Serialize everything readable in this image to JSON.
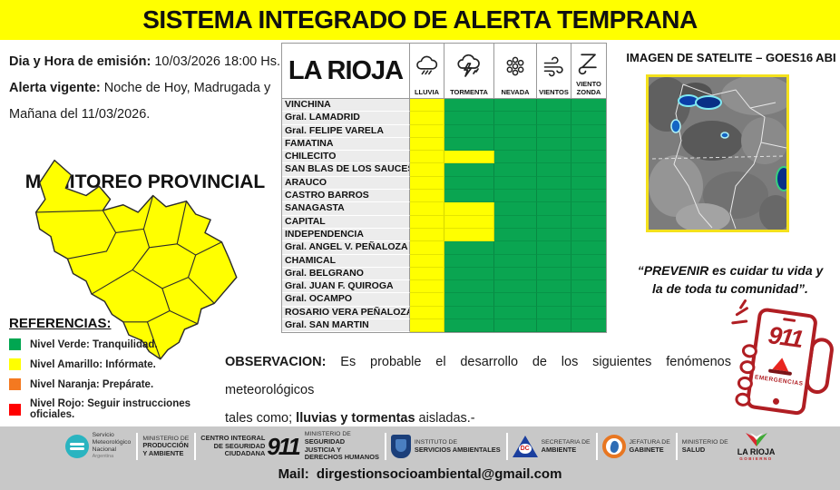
{
  "header": {
    "title": "SISTEMA INTEGRADO DE ALERTA TEMPRANA"
  },
  "info": {
    "emission_label": "Dia y Hora de emisión:",
    "emission_value": "10/03/2026  18:00 Hs.",
    "alert_label": "Alerta vigente:",
    "alert_value_line1": "Noche de Hoy, Madrugada y",
    "alert_value_line2": "Mañana del 11/03/2026.",
    "monitoring_title": "MONITOREO PROVINCIAL"
  },
  "references": {
    "title": "REFERENCIAS",
    "items": [
      {
        "color": "#00a651",
        "label": "Nivel Verde: Tranquilidad."
      },
      {
        "color": "#ffff00",
        "label": "Nivel Amarillo: Infórmate."
      },
      {
        "color": "#f47920",
        "label": "Nivel Naranja: Prepárate."
      },
      {
        "color": "#ff0000",
        "label": "Nivel Rojo: Seguir instrucciones oficiales."
      }
    ]
  },
  "table": {
    "title": "LA RIOJA",
    "columns": [
      {
        "id": "lluvia",
        "label": "LLUVIA",
        "icon": "rain-cloud-icon"
      },
      {
        "id": "tormenta",
        "label": "TORMENTA",
        "icon": "storm-cloud-icon"
      },
      {
        "id": "nevada",
        "label": "NEVADA",
        "icon": "snowfall-icon"
      },
      {
        "id": "vientos",
        "label": "VIENTOS",
        "icon": "wind-icon"
      },
      {
        "id": "zonda",
        "label": "VIENTO\nZONDA",
        "icon": "zonda-icon"
      }
    ],
    "levels": {
      "yellow": "#ffff00",
      "green": "#0aa551"
    },
    "rows": [
      {
        "name": "VINCHINA",
        "cells": [
          "yellow",
          "green",
          "green",
          "green",
          "green"
        ]
      },
      {
        "name": "Gral. LAMADRID",
        "cells": [
          "yellow",
          "green",
          "green",
          "green",
          "green"
        ]
      },
      {
        "name": "Gral. FELIPE VARELA",
        "cells": [
          "yellow",
          "green",
          "green",
          "green",
          "green"
        ]
      },
      {
        "name": "FAMATINA",
        "cells": [
          "yellow",
          "green",
          "green",
          "green",
          "green"
        ]
      },
      {
        "name": "CHILECITO",
        "cells": [
          "yellow",
          "yellow",
          "green",
          "green",
          "green"
        ]
      },
      {
        "name": "SAN BLAS DE LOS SAUCES",
        "cells": [
          "yellow",
          "green",
          "green",
          "green",
          "green"
        ]
      },
      {
        "name": "ARAUCO",
        "cells": [
          "yellow",
          "green",
          "green",
          "green",
          "green"
        ]
      },
      {
        "name": "CASTRO BARROS",
        "cells": [
          "yellow",
          "green",
          "green",
          "green",
          "green"
        ]
      },
      {
        "name": "SANAGASTA",
        "cells": [
          "yellow",
          "yellow",
          "green",
          "green",
          "green"
        ]
      },
      {
        "name": "CAPITAL",
        "cells": [
          "yellow",
          "yellow",
          "green",
          "green",
          "green"
        ]
      },
      {
        "name": "INDEPENDENCIA",
        "cells": [
          "yellow",
          "yellow",
          "green",
          "green",
          "green"
        ]
      },
      {
        "name": "Gral. ANGEL V. PEÑALOZA",
        "cells": [
          "yellow",
          "green",
          "green",
          "green",
          "green"
        ]
      },
      {
        "name": "CHAMICAL",
        "cells": [
          "yellow",
          "green",
          "green",
          "green",
          "green"
        ]
      },
      {
        "name": "Gral. BELGRANO",
        "cells": [
          "yellow",
          "green",
          "green",
          "green",
          "green"
        ]
      },
      {
        "name": "Gral. JUAN F. QUIROGA",
        "cells": [
          "yellow",
          "green",
          "green",
          "green",
          "green"
        ]
      },
      {
        "name": "Gral. OCAMPO",
        "cells": [
          "yellow",
          "green",
          "green",
          "green",
          "green"
        ]
      },
      {
        "name": "ROSARIO VERA PEÑALOZA",
        "cells": [
          "yellow",
          "green",
          "green",
          "green",
          "green"
        ]
      },
      {
        "name": "Gral. SAN MARTIN",
        "cells": [
          "yellow",
          "green",
          "green",
          "green",
          "green"
        ]
      }
    ]
  },
  "satellite": {
    "title": "IMAGEN DE SATELITE – GOES16 ABI"
  },
  "quote": {
    "line1": "“PREVENIR es cuidar tu vida y",
    "line2": "la de toda tu comunidad”."
  },
  "emergency": {
    "number": "911",
    "label": "EMERGENCIAS"
  },
  "observation": {
    "label": "OBSERVACION:",
    "line1_rest": " Es probable el desarrollo de los siguientes fenómenos meteorológicos",
    "line2_pre": "tales como; ",
    "line2_bold": "lluvias y tormentas",
    "line2_post": " aisladas.-"
  },
  "footer": {
    "groups": [
      {
        "type": "smn",
        "icon": "smn-logo-icon",
        "lines": [
          "Servicio",
          "Meteorológico",
          "Nacional"
        ],
        "sub": "Argentina",
        "bold_from": 99
      },
      {
        "type": "text",
        "icon": "",
        "lines": [
          "MINISTERIO DE",
          "PRODUCCIÓN",
          "Y AMBIENTE"
        ],
        "bold_from": 1,
        "sep": true
      },
      {
        "type": "c911",
        "icon": "911-logo-icon",
        "lines": [
          "CENTRO INTEGRAL",
          "DE SEGURIDAD",
          "CIUDADANA"
        ],
        "number": "911",
        "bold_from": 0,
        "sep": true
      },
      {
        "type": "text",
        "icon": "",
        "lines": [
          "MINISTERIO DE",
          "SEGURIDAD",
          "JUSTICIA Y",
          "DERECHOS HUMANOS"
        ],
        "bold_from": 1,
        "sep": false
      },
      {
        "type": "shield",
        "icon": "ambient-shield-icon",
        "lines": [
          "INSTITUTO DE",
          "SERVICIOS AMBIENTALES"
        ],
        "bold_from": 1,
        "sep": true
      },
      {
        "type": "dc",
        "icon": "defensa-civil-icon",
        "lines": [
          "SECRETARIA DE",
          "AMBIENTE"
        ],
        "bold_from": 1,
        "sep": true
      },
      {
        "type": "orange",
        "icon": "jefatura-icon",
        "lines": [
          "JEFATURA DE",
          "GABINETE"
        ],
        "bold_from": 1,
        "sep": true
      },
      {
        "type": "text",
        "icon": "",
        "lines": [
          "MINISTERIO DE",
          "SALUD"
        ],
        "bold_from": 1,
        "sep": true
      },
      {
        "type": "larioja",
        "icon": "la-rioja-gobierno-icon",
        "lines": [
          "LA RIOJA",
          "GOBIERNO"
        ],
        "bold_from": 0,
        "sep": false
      }
    ],
    "mail_label": "Mail:",
    "mail_address": "dirgestionsocioambiental@gmail.com"
  }
}
